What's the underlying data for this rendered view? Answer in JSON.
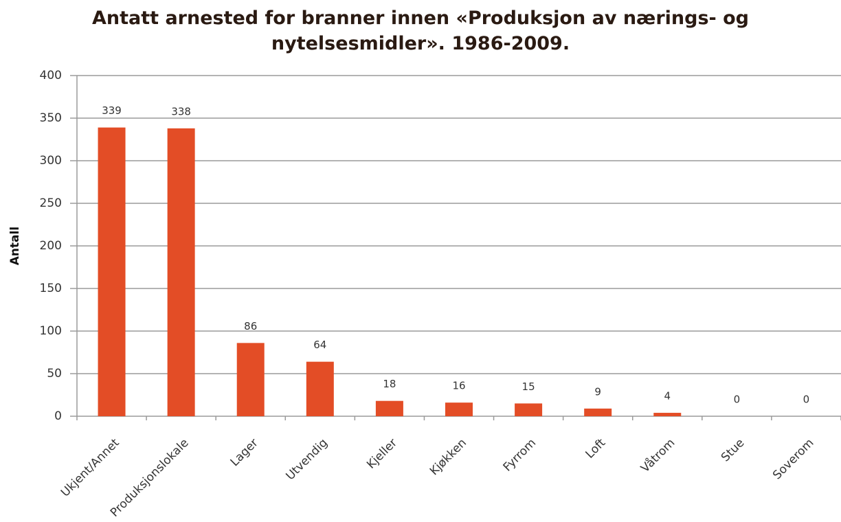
{
  "chart_data": {
    "type": "bar",
    "title": "Antatt arnested for branner innen «Produksjon av nærings- og nytelsesmidler». 1986-2009.",
    "y_label": "Antall",
    "categories": [
      "Ukjent/Annet",
      "Produksjonslokale",
      "Lager",
      "Utvendig",
      "Kjeller",
      "Kjøkken",
      "Fyrrom",
      "Loft",
      "Våtrom",
      "Stue",
      "Soverom"
    ],
    "values": [
      339,
      338,
      86,
      64,
      18,
      16,
      15,
      9,
      4,
      0,
      0
    ],
    "color": "#e34d26",
    "ylim": [
      0,
      400
    ],
    "yticks": [
      0,
      50,
      100,
      150,
      200,
      250,
      300,
      350,
      400
    ],
    "grid": true
  }
}
